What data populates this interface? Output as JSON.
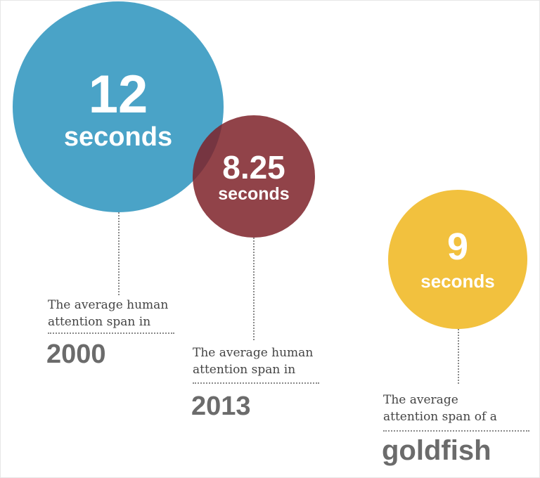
{
  "items": [
    {
      "number": "12",
      "unit": "seconds",
      "caption_line1": "The average human",
      "caption_line2": "attention span in",
      "subject": "2000",
      "color": "#4aa3c7"
    },
    {
      "number": "8.25",
      "unit": "seconds",
      "caption_line1": "The average human",
      "caption_line2": "attention span in",
      "subject": "2013",
      "color": "#7e2229"
    },
    {
      "number": "9",
      "unit": "seconds",
      "caption_line1": "The average",
      "caption_line2": "attention span of a",
      "subject": "goldfish",
      "color": "#f2c13e"
    }
  ]
}
